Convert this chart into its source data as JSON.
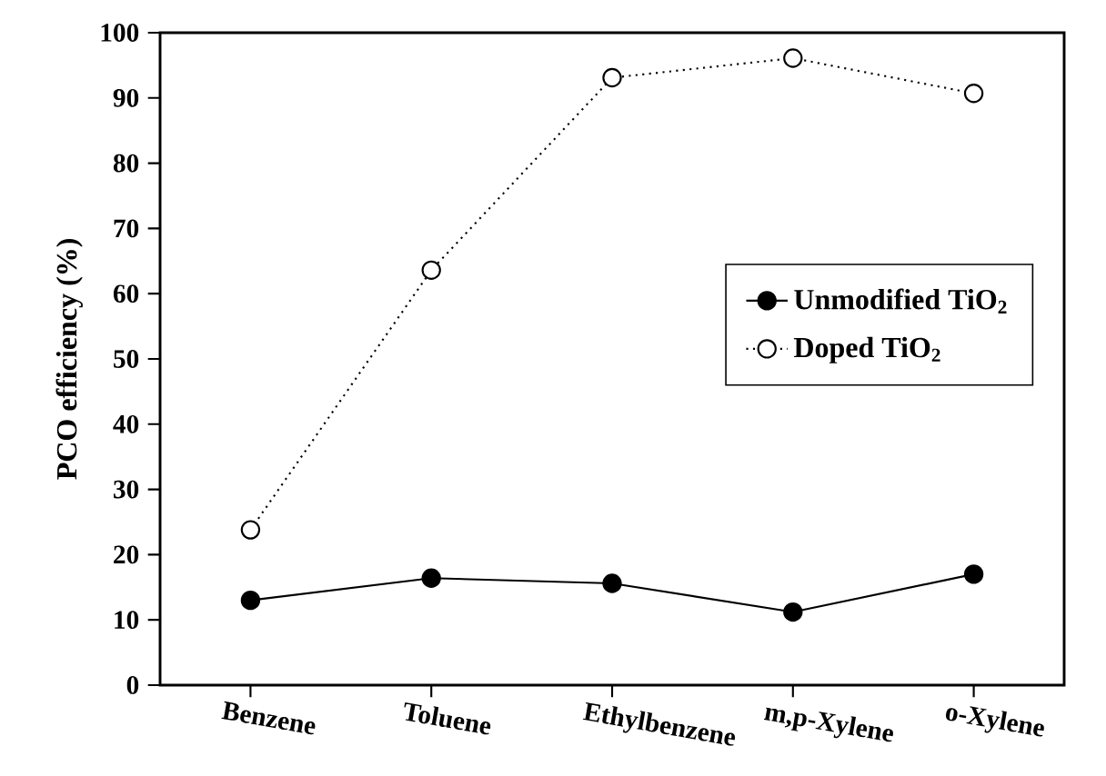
{
  "chart_data": {
    "type": "line",
    "ylabel": "PCO efficiency (%)",
    "categories": [
      "Benzene",
      "Toluene",
      "Ethylbenzene",
      "m,p-Xylene",
      "o-Xylene"
    ],
    "series": [
      {
        "name": "Unmodified TiO$_{2}$",
        "color": "#000000",
        "line_style": "solid",
        "values": [
          13.0,
          16.4,
          15.6,
          11.2,
          17.0
        ]
      },
      {
        "name": "Doped TiO$_{2}$",
        "color": "#000000",
        "line_style": "dotted",
        "values": [
          23.8,
          63.6,
          93.1,
          96.1,
          90.7
        ]
      }
    ],
    "ylim": [
      0,
      100
    ],
    "yticks": [
      0,
      10,
      20,
      30,
      40,
      50,
      60,
      70,
      80,
      90,
      100
    ],
    "marker": "circle",
    "legend": "right",
    "grid": false
  }
}
